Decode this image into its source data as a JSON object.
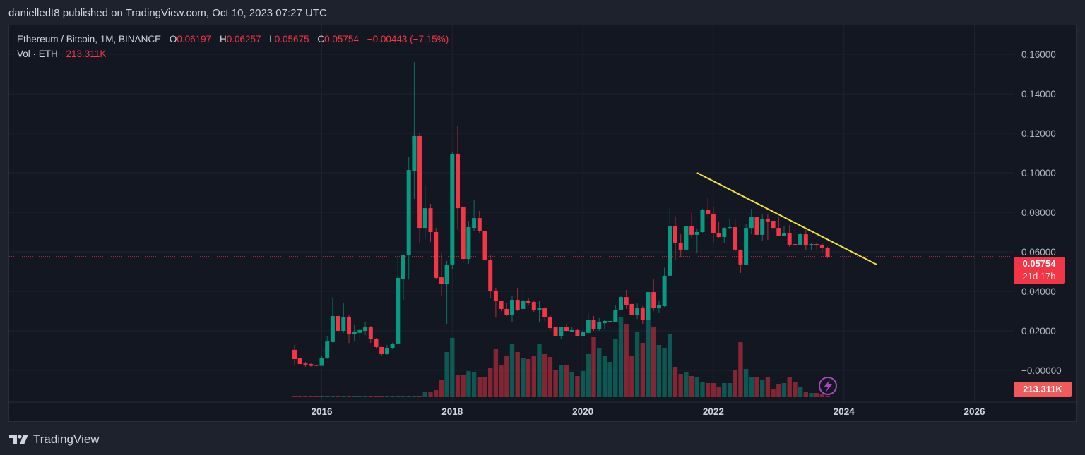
{
  "header": {
    "published": "danielledt8 published on TradingView.com, Oct 10, 2023 07:27 UTC"
  },
  "legend": {
    "symbol": "Ethereum / Bitcoin, 1M, BINANCE",
    "o_label": "O",
    "o": "0.06197",
    "h_label": "H",
    "h": "0.06257",
    "l_label": "L",
    "l": "0.05675",
    "c_label": "C",
    "c": "0.05754",
    "change": "−0.00443 (−7.15%)",
    "vol_label": "Vol · ETH",
    "vol": "213.311K"
  },
  "price_label": {
    "value": "0.05754",
    "countdown": "21d 17h"
  },
  "volume_label": "213.311K",
  "footer": {
    "brand": "TradingView"
  },
  "colors": {
    "up": "#089981",
    "down": "#f23645",
    "trendline": "#f5e33a",
    "grid": "#1f2330",
    "axis_text": "#b2b5be",
    "alert_icon": "#ab47bc"
  },
  "icons": {
    "alert": "lightning-icon",
    "logo": "tradingview-logo-icon"
  },
  "chart_data": {
    "type": "candlestick",
    "title": "Ethereum / Bitcoin, 1M, BINANCE",
    "start_month": "2015-08",
    "interval": "1M",
    "ylim": [
      0,
      0.175
    ],
    "y_ticks": [
      "0.16000",
      "0.14000",
      "0.12000",
      "0.10000",
      "0.08000",
      "0.06000",
      "0.04000",
      "0.02000",
      "−0.00000"
    ],
    "y_tick_values": [
      0.16,
      0.14,
      0.12,
      0.1,
      0.08,
      0.06,
      0.04,
      0.02,
      0
    ],
    "x_ticks": [
      "2016",
      "2018",
      "2020",
      "2022",
      "2024",
      "2026"
    ],
    "grid": true,
    "last_price": 0.05754,
    "ohlc": [
      [
        0.0104,
        0.0129,
        0.0029,
        0.0057
      ],
      [
        0.0061,
        0.0064,
        0.0025,
        0.0032
      ],
      [
        0.0035,
        0.0043,
        0.0018,
        0.0029
      ],
      [
        0.0032,
        0.0036,
        0.0018,
        0.0023
      ],
      [
        0.0027,
        0.003,
        0.002,
        0.0023
      ],
      [
        0.0023,
        0.0075,
        0.0023,
        0.0064
      ],
      [
        0.0061,
        0.0175,
        0.0058,
        0.0146
      ],
      [
        0.0143,
        0.0367,
        0.014,
        0.0275
      ],
      [
        0.0275,
        0.0285,
        0.0157,
        0.02
      ],
      [
        0.02,
        0.0343,
        0.019,
        0.0268
      ],
      [
        0.0268,
        0.0282,
        0.0139,
        0.0182
      ],
      [
        0.0182,
        0.0229,
        0.0146,
        0.0193
      ],
      [
        0.019,
        0.0214,
        0.0154,
        0.0204
      ],
      [
        0.02,
        0.0243,
        0.0179,
        0.0221
      ],
      [
        0.0221,
        0.0225,
        0.0139,
        0.0157
      ],
      [
        0.016,
        0.0164,
        0.011,
        0.0118
      ],
      [
        0.0118,
        0.012,
        0.0075,
        0.0082
      ],
      [
        0.0082,
        0.0129,
        0.0079,
        0.0114
      ],
      [
        0.0111,
        0.014,
        0.0107,
        0.0136
      ],
      [
        0.0136,
        0.0575,
        0.013,
        0.0468
      ],
      [
        0.0464,
        0.0586,
        0.0357,
        0.0586
      ],
      [
        0.0582,
        0.1079,
        0.046,
        0.1014
      ],
      [
        0.101,
        0.156,
        0.0868,
        0.1186
      ],
      [
        0.1186,
        0.1204,
        0.0643,
        0.0721
      ],
      [
        0.0721,
        0.0936,
        0.0664,
        0.0821
      ],
      [
        0.0821,
        0.0843,
        0.065,
        0.07
      ],
      [
        0.07,
        0.0721,
        0.046,
        0.0468
      ],
      [
        0.0471,
        0.0593,
        0.0379,
        0.0436
      ],
      [
        0.0436,
        0.0554,
        0.0236,
        0.0536
      ],
      [
        0.0536,
        0.1107,
        0.0511,
        0.1093
      ],
      [
        0.1093,
        0.1236,
        0.0711,
        0.0821
      ],
      [
        0.0825,
        0.0825,
        0.0543,
        0.0564
      ],
      [
        0.0564,
        0.0757,
        0.0539,
        0.0725
      ],
      [
        0.0721,
        0.0861,
        0.0704,
        0.0771
      ],
      [
        0.0771,
        0.0807,
        0.0693,
        0.0707
      ],
      [
        0.0707,
        0.0732,
        0.0543,
        0.0557
      ],
      [
        0.0557,
        0.0586,
        0.0364,
        0.04
      ],
      [
        0.0404,
        0.0418,
        0.0271,
        0.035
      ],
      [
        0.035,
        0.0352,
        0.03,
        0.0311
      ],
      [
        0.0311,
        0.0343,
        0.0275,
        0.0279
      ],
      [
        0.0279,
        0.0379,
        0.0246,
        0.0357
      ],
      [
        0.0357,
        0.0418,
        0.03,
        0.0307
      ],
      [
        0.0311,
        0.04,
        0.029,
        0.0354
      ],
      [
        0.0354,
        0.0364,
        0.0329,
        0.0343
      ],
      [
        0.0346,
        0.0354,
        0.0296,
        0.0304
      ],
      [
        0.0304,
        0.035,
        0.0246,
        0.0314
      ],
      [
        0.0314,
        0.0321,
        0.025,
        0.0271
      ],
      [
        0.0271,
        0.0282,
        0.0204,
        0.0214
      ],
      [
        0.0218,
        0.022,
        0.0171,
        0.0175
      ],
      [
        0.0175,
        0.0221,
        0.016,
        0.0218
      ],
      [
        0.0218,
        0.0232,
        0.0193,
        0.02
      ],
      [
        0.0196,
        0.0218,
        0.0193,
        0.0204
      ],
      [
        0.0204,
        0.0211,
        0.0171,
        0.0175
      ],
      [
        0.0175,
        0.0204,
        0.017,
        0.0193
      ],
      [
        0.019,
        0.0289,
        0.0186,
        0.0257
      ],
      [
        0.0257,
        0.0275,
        0.02,
        0.0207
      ],
      [
        0.0207,
        0.0264,
        0.02,
        0.0243
      ],
      [
        0.0239,
        0.0257,
        0.0207,
        0.025
      ],
      [
        0.0246,
        0.026,
        0.024,
        0.025
      ],
      [
        0.0246,
        0.0329,
        0.0243,
        0.0307
      ],
      [
        0.0304,
        0.0379,
        0.0304,
        0.0371
      ],
      [
        0.0371,
        0.0407,
        0.0311,
        0.0332
      ],
      [
        0.0336,
        0.0336,
        0.0275,
        0.0279
      ],
      [
        0.0279,
        0.0339,
        0.026,
        0.0314
      ],
      [
        0.0314,
        0.0325,
        0.0232,
        0.0254
      ],
      [
        0.0254,
        0.045,
        0.0243,
        0.0396
      ],
      [
        0.0396,
        0.0461,
        0.03,
        0.0314
      ],
      [
        0.0314,
        0.0354,
        0.0293,
        0.0329
      ],
      [
        0.0325,
        0.052,
        0.0321,
        0.0479
      ],
      [
        0.0479,
        0.0821,
        0.0479,
        0.0729
      ],
      [
        0.0729,
        0.0779,
        0.0557,
        0.0646
      ],
      [
        0.0646,
        0.0689,
        0.0571,
        0.0611
      ],
      [
        0.0611,
        0.0732,
        0.0607,
        0.0729
      ],
      [
        0.0729,
        0.0796,
        0.0668,
        0.0686
      ],
      [
        0.0686,
        0.0718,
        0.0593,
        0.07
      ],
      [
        0.07,
        0.0818,
        0.0696,
        0.0814
      ],
      [
        0.0814,
        0.0875,
        0.0775,
        0.0793
      ],
      [
        0.0793,
        0.0829,
        0.0646,
        0.0696
      ],
      [
        0.0696,
        0.075,
        0.0668,
        0.0675
      ],
      [
        0.0675,
        0.0725,
        0.0643,
        0.0721
      ],
      [
        0.0721,
        0.0768,
        0.0718,
        0.0725
      ],
      [
        0.0725,
        0.0768,
        0.06,
        0.0611
      ],
      [
        0.0611,
        0.0611,
        0.0493,
        0.0536
      ],
      [
        0.0536,
        0.0739,
        0.0532,
        0.0721
      ],
      [
        0.0721,
        0.0818,
        0.0689,
        0.0775
      ],
      [
        0.0775,
        0.0854,
        0.0668,
        0.0686
      ],
      [
        0.0686,
        0.0793,
        0.0654,
        0.0768
      ],
      [
        0.0768,
        0.0789,
        0.0661,
        0.0754
      ],
      [
        0.0757,
        0.0761,
        0.0704,
        0.0721
      ],
      [
        0.0721,
        0.0779,
        0.068,
        0.0682
      ],
      [
        0.0682,
        0.0729,
        0.0679,
        0.0693
      ],
      [
        0.0693,
        0.0736,
        0.0625,
        0.0636
      ],
      [
        0.0639,
        0.0711,
        0.0621,
        0.0636
      ],
      [
        0.0636,
        0.0693,
        0.0632,
        0.0689
      ],
      [
        0.0689,
        0.0711,
        0.0607,
        0.0632
      ],
      [
        0.0636,
        0.0646,
        0.0611,
        0.0639
      ],
      [
        0.0639,
        0.065,
        0.0607,
        0.0632
      ],
      [
        0.0636,
        0.0643,
        0.0596,
        0.0618
      ],
      [
        0.06197,
        0.06257,
        0.05675,
        0.05754
      ]
    ],
    "volume_k": [
      110,
      100,
      100,
      100,
      100,
      100,
      110,
      120,
      100,
      100,
      100,
      100,
      100,
      100,
      100,
      100,
      100,
      100,
      100,
      120,
      120,
      130,
      130,
      200,
      700,
      700,
      1000,
      2400,
      6400,
      8400,
      3100,
      3200,
      3700,
      3600,
      2900,
      2900,
      4200,
      6800,
      4500,
      5900,
      7600,
      6400,
      5600,
      5400,
      5800,
      7600,
      6100,
      5700,
      3900,
      4600,
      4500,
      3600,
      3000,
      3700,
      6100,
      8500,
      6900,
      5800,
      5000,
      8300,
      11300,
      10400,
      5900,
      9300,
      7700,
      11000,
      10000,
      7400,
      6900,
      9000,
      4300,
      3300,
      3600,
      3000,
      2800,
      2100,
      2000,
      2000,
      1500,
      2000,
      2000,
      3900,
      7800,
      4000,
      2800,
      2900,
      2500,
      2900,
      1200,
      1900,
      2000,
      2900,
      2100,
      1400,
      800,
      600,
      600,
      500,
      213.311
    ],
    "volume_max_k": 11600,
    "trendline": {
      "from": {
        "month": "2021-10",
        "price": 0.1
      },
      "to": {
        "month": "2024-07",
        "price": 0.0536
      }
    }
  }
}
